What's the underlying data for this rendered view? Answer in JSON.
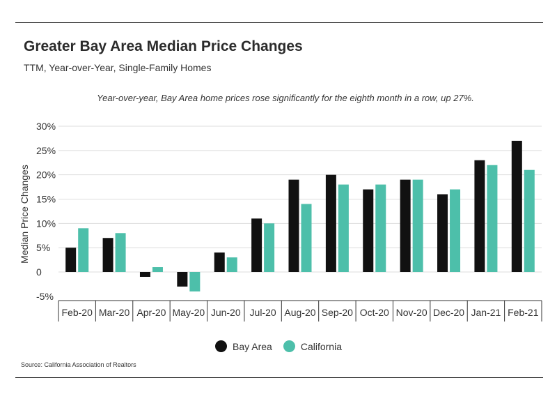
{
  "header": {
    "title": "Greater Bay Area Median Price Changes",
    "subtitle": "TTM, Year-over-Year, Single-Family Homes"
  },
  "annotation": "Year-over-year, Bay Area home prices rose significantly for the eighth month in a row, up 27%.",
  "source": "Source:  California Association of Realtors",
  "colors": {
    "bay_area": "#111111",
    "california": "#4dbfaa",
    "grid": "#dddddd",
    "text": "#333333"
  },
  "chart_data": {
    "type": "bar",
    "categories": [
      "Feb-20",
      "Mar-20",
      "Apr-20",
      "May-20",
      "Jun-20",
      "Jul-20",
      "Aug-20",
      "Sep-20",
      "Oct-20",
      "Nov-20",
      "Dec-20",
      "Jan-21",
      "Feb-21"
    ],
    "series": [
      {
        "name": "Bay Area",
        "color": "#111111",
        "values": [
          5,
          7,
          -1,
          -3,
          4,
          11,
          19,
          20,
          17,
          19,
          16,
          23,
          27
        ]
      },
      {
        "name": "California",
        "color": "#4dbfaa",
        "values": [
          9,
          8,
          1,
          -4,
          3,
          10,
          14,
          18,
          18,
          19,
          17,
          22,
          21
        ]
      }
    ],
    "ylabel": "Median Price Changes",
    "ylim": [
      -5,
      30
    ],
    "yticks": [
      30,
      25,
      20,
      15,
      10,
      5,
      0,
      -5
    ],
    "ytick_labels": [
      "30%",
      "25%",
      "20%",
      "15%",
      "10%",
      "5%",
      "0",
      "-5%"
    ],
    "grid": true,
    "legend": "bottom-center"
  }
}
